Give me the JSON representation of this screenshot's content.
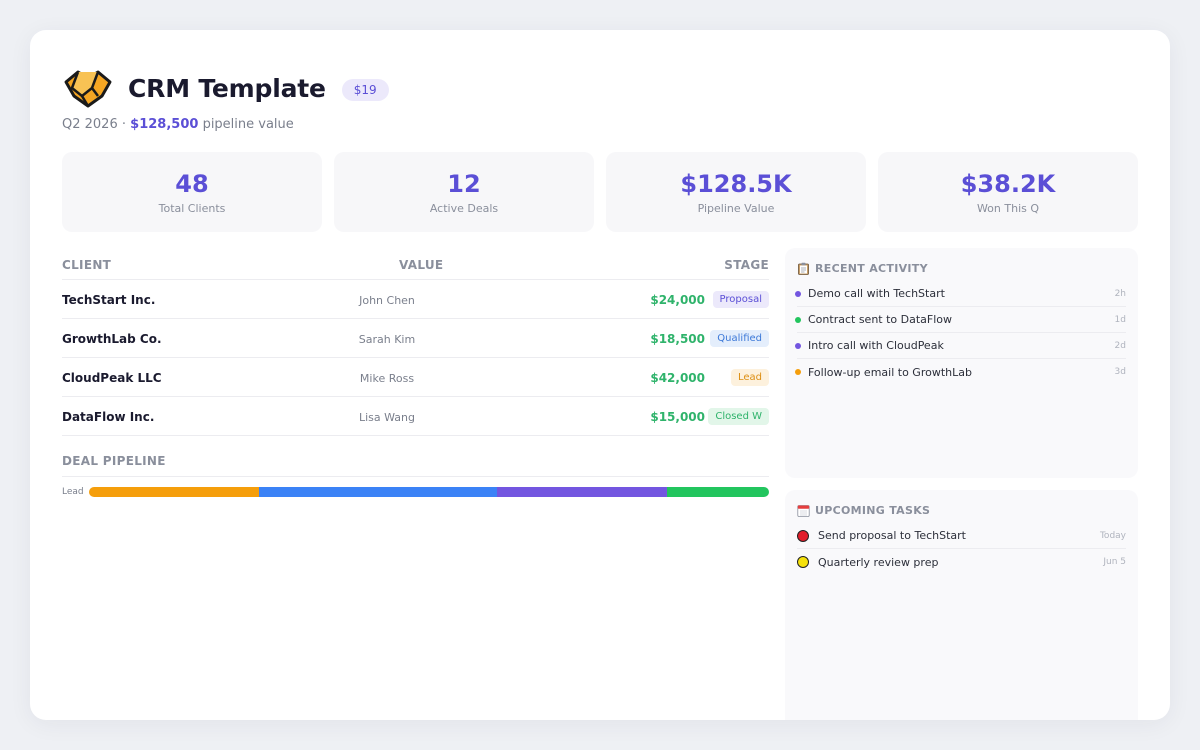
{
  "header": {
    "title": "CRM Template",
    "price": "$19",
    "period": "Q2 2026",
    "separator": "·",
    "pipeline_amount": "$128,500",
    "pipeline_suffix": "pipeline value"
  },
  "stats": [
    {
      "value": "48",
      "label": "Total Clients"
    },
    {
      "value": "12",
      "label": "Active Deals"
    },
    {
      "value": "$128.5K",
      "label": "Pipeline Value"
    },
    {
      "value": "$38.2K",
      "label": "Won This Q"
    }
  ],
  "table": {
    "headers": {
      "client": "CLIENT",
      "value": "VALUE",
      "stage": "STAGE"
    },
    "rows": [
      {
        "client": "TechStart Inc.",
        "contact": "John Chen",
        "value": "$24,000",
        "stage": "Proposal"
      },
      {
        "client": "GrowthLab Co.",
        "contact": "Sarah Kim",
        "value": "$18,500",
        "stage": "Qualified"
      },
      {
        "client": "CloudPeak LLC",
        "contact": "Mike Ross",
        "value": "$42,000",
        "stage": "Lead"
      },
      {
        "client": "DataFlow Inc.",
        "contact": "Lisa Wang",
        "value": "$15,000",
        "stage": "Closed W"
      }
    ]
  },
  "pipeline": {
    "title": "DEAL PIPELINE",
    "label": "Lead",
    "segments": [
      {
        "share": 25,
        "color": "#f59e0b"
      },
      {
        "share": 35,
        "color": "#3b82f6"
      },
      {
        "share": 25,
        "color": "#7356e0"
      },
      {
        "share": 15,
        "color": "#22c55e"
      }
    ]
  },
  "activity": {
    "icon": "clipboard-icon",
    "title": "RECENT ACTIVITY",
    "items": [
      {
        "text": "Demo call with TechStart",
        "time": "2h",
        "color": "#7356e0"
      },
      {
        "text": "Contract sent to DataFlow",
        "time": "1d",
        "color": "#22c55e"
      },
      {
        "text": "Intro call with CloudPeak",
        "time": "2d",
        "color": "#7356e0"
      },
      {
        "text": "Follow-up email to GrowthLab",
        "time": "3d",
        "color": "#f59e0b"
      }
    ]
  },
  "tasks": {
    "icon": "calendar-icon",
    "title": "UPCOMING TASKS",
    "items": [
      {
        "text": "Send proposal to TechStart",
        "due": "Today",
        "color": "#e11d2a"
      },
      {
        "text": "Quarterly review prep",
        "due": "Jun 5",
        "color": "#f5e10b"
      }
    ]
  }
}
